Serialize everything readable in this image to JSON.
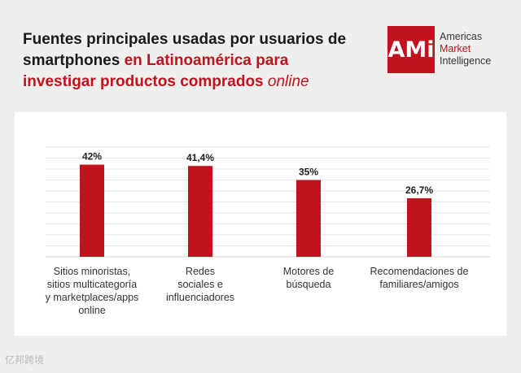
{
  "header": {
    "title_black": "Fuentes principales usadas por usuarios de smartphones",
    "title_red": "en Latinoamérica para investigar productos comprados",
    "title_italic": "online"
  },
  "logo": {
    "mark": "AMi",
    "line1": "Americas",
    "line2": "Market",
    "line3": "Intelligence"
  },
  "chart_data": {
    "type": "bar",
    "title": "Fuentes principales usadas por usuarios de smartphones en Latinoamérica para investigar productos comprados online",
    "categories": [
      "Sitios minoristas, sitios multicategoría y marketplaces/apps online",
      "Redes sociales e influenciadores",
      "Motores de búsqueda",
      "Recomendaciones de familiares/amigos"
    ],
    "category_lines": [
      [
        "Sitios minoristas,",
        "sitios multicategoría",
        "y marketplaces/apps",
        "online"
      ],
      [
        "Redes",
        "sociales e",
        "influenciadores"
      ],
      [
        "Motores de",
        "búsqueda"
      ],
      [
        "Recomendaciones de",
        "familiares/amigos"
      ]
    ],
    "values": [
      42,
      41.4,
      35,
      26.7
    ],
    "value_labels": [
      "42%",
      "41,4%",
      "35%",
      "26,7%"
    ],
    "xlabel": "",
    "ylabel": "",
    "ylim": [
      0,
      50
    ],
    "grid": true,
    "bar_color": "#c1121f"
  },
  "watermark": "亿邦跨境"
}
